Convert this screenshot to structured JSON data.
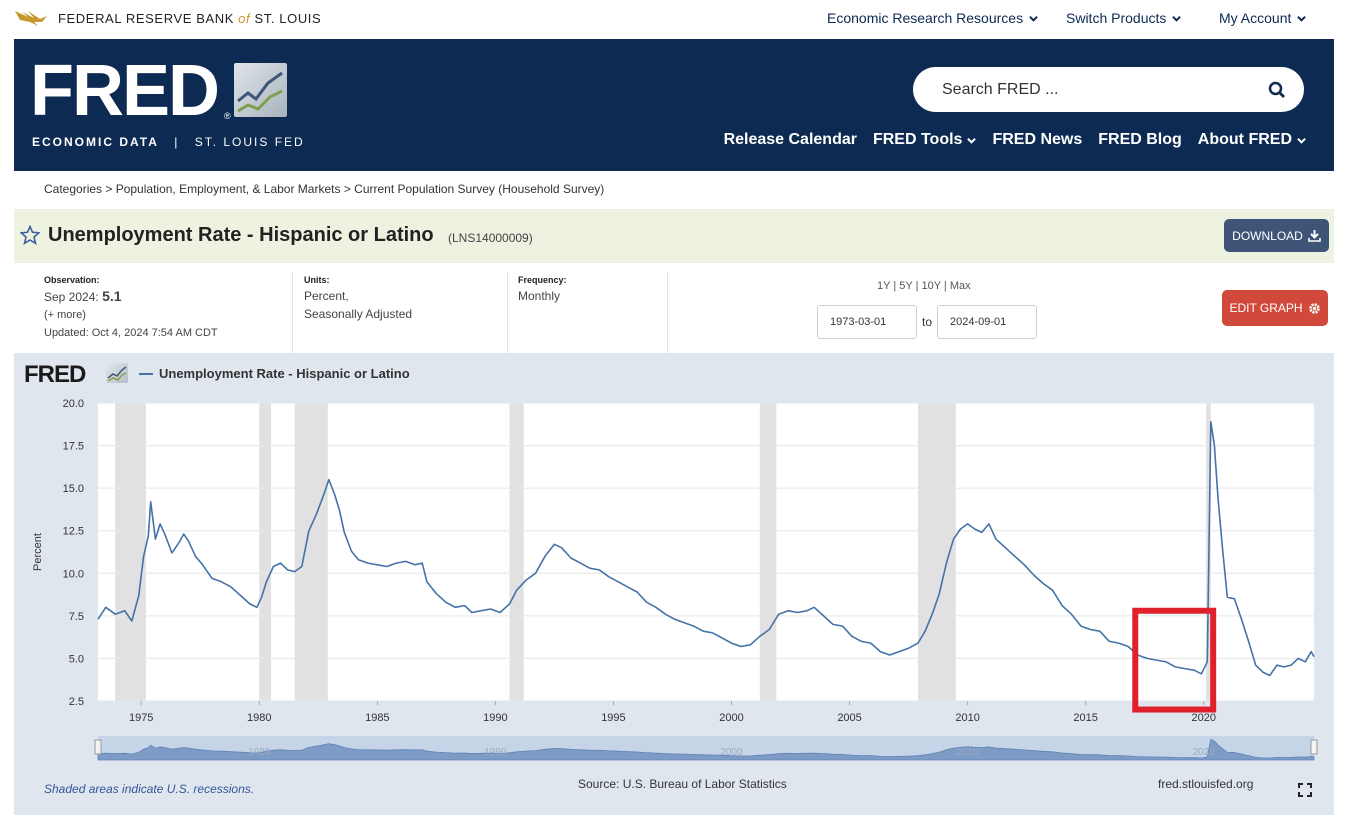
{
  "topbar": {
    "brand_main": "FEDERAL RESERVE BANK",
    "brand_of": "of",
    "brand_city": "ST. LOUIS",
    "nav": [
      {
        "label": "Economic Research Resources"
      },
      {
        "label": "Switch Products"
      },
      {
        "label": "My Account"
      }
    ]
  },
  "header": {
    "logo_text": "FRED",
    "logo_reg": "®",
    "logo_sub_left": "ECONOMIC DATA",
    "logo_sub_sep": "|",
    "logo_sub_right": "ST. LOUIS FED",
    "search_placeholder": "Search FRED ...",
    "nav": [
      {
        "label": "Release Calendar",
        "dropdown": false
      },
      {
        "label": "FRED Tools",
        "dropdown": true
      },
      {
        "label": "FRED News",
        "dropdown": false
      },
      {
        "label": "FRED Blog",
        "dropdown": false
      },
      {
        "label": "About FRED",
        "dropdown": true
      }
    ]
  },
  "breadcrumb": "Categories > Population, Employment, & Labor Markets > Current Population Survey (Household Survey)",
  "series": {
    "title": "Unemployment Rate - Hispanic or Latino",
    "id": "(LNS14000009)",
    "download_label": "DOWNLOAD"
  },
  "meta": {
    "observation_label": "Observation:",
    "observation_date": "Sep 2024:",
    "observation_value": "5.1",
    "more": "(+ more)",
    "updated": "Updated: Oct 4, 2024 7:54 AM CDT",
    "units_label": "Units:",
    "units_line1": "Percent,",
    "units_line2": "Seasonally Adjusted",
    "frequency_label": "Frequency:",
    "frequency_value": "Monthly",
    "range_links": [
      "1Y",
      "5Y",
      "10Y",
      "Max"
    ],
    "start_date": "1973-03-01",
    "to_label": "to",
    "end_date": "2024-09-01",
    "edit_label": "EDIT GRAPH"
  },
  "graph": {
    "logo_text": "FRED",
    "recession_note": "Shaded areas indicate U.S. recessions.",
    "source": "Source: U.S. Bureau of Labor Statistics",
    "site": "fred.stlouisfed.org",
    "highlight_color": "#e0202a"
  },
  "chart_data": {
    "type": "line",
    "series": [
      {
        "name": "Unemployment Rate - Hispanic or Latino",
        "color": "#4572a7",
        "points": [
          [
            1973.17,
            7.3
          ],
          [
            1973.5,
            8.0
          ],
          [
            1973.9,
            7.6
          ],
          [
            1974.3,
            7.8
          ],
          [
            1974.6,
            7.2
          ],
          [
            1974.9,
            8.7
          ],
          [
            1975.1,
            11.0
          ],
          [
            1975.3,
            12.2
          ],
          [
            1975.4,
            14.2
          ],
          [
            1975.6,
            12.0
          ],
          [
            1975.8,
            12.9
          ],
          [
            1976.0,
            12.3
          ],
          [
            1976.3,
            11.2
          ],
          [
            1976.6,
            11.8
          ],
          [
            1976.8,
            12.3
          ],
          [
            1977.0,
            11.9
          ],
          [
            1977.3,
            11.0
          ],
          [
            1977.6,
            10.5
          ],
          [
            1978.0,
            9.7
          ],
          [
            1978.4,
            9.5
          ],
          [
            1978.8,
            9.2
          ],
          [
            1979.2,
            8.7
          ],
          [
            1979.6,
            8.2
          ],
          [
            1979.9,
            8.0
          ],
          [
            1980.1,
            8.6
          ],
          [
            1980.3,
            9.5
          ],
          [
            1980.6,
            10.4
          ],
          [
            1980.9,
            10.6
          ],
          [
            1981.2,
            10.2
          ],
          [
            1981.5,
            10.1
          ],
          [
            1981.8,
            10.4
          ],
          [
            1982.1,
            12.5
          ],
          [
            1982.4,
            13.4
          ],
          [
            1982.7,
            14.5
          ],
          [
            1982.95,
            15.5
          ],
          [
            1983.2,
            14.6
          ],
          [
            1983.4,
            13.7
          ],
          [
            1983.6,
            12.4
          ],
          [
            1983.9,
            11.3
          ],
          [
            1984.2,
            10.8
          ],
          [
            1984.6,
            10.6
          ],
          [
            1985.0,
            10.5
          ],
          [
            1985.4,
            10.4
          ],
          [
            1985.8,
            10.6
          ],
          [
            1986.2,
            10.7
          ],
          [
            1986.6,
            10.5
          ],
          [
            1986.9,
            10.6
          ],
          [
            1987.1,
            9.5
          ],
          [
            1987.5,
            8.8
          ],
          [
            1987.9,
            8.3
          ],
          [
            1988.3,
            8.0
          ],
          [
            1988.7,
            8.1
          ],
          [
            1989.0,
            7.7
          ],
          [
            1989.4,
            7.8
          ],
          [
            1989.8,
            7.9
          ],
          [
            1990.2,
            7.7
          ],
          [
            1990.6,
            8.2
          ],
          [
            1990.9,
            9.0
          ],
          [
            1991.3,
            9.6
          ],
          [
            1991.7,
            10.0
          ],
          [
            1992.1,
            11.0
          ],
          [
            1992.5,
            11.7
          ],
          [
            1992.8,
            11.5
          ],
          [
            1993.2,
            10.9
          ],
          [
            1993.6,
            10.6
          ],
          [
            1994.0,
            10.3
          ],
          [
            1994.4,
            10.2
          ],
          [
            1994.8,
            9.8
          ],
          [
            1995.2,
            9.5
          ],
          [
            1995.6,
            9.2
          ],
          [
            1996.0,
            8.9
          ],
          [
            1996.4,
            8.3
          ],
          [
            1996.8,
            8.0
          ],
          [
            1997.2,
            7.6
          ],
          [
            1997.6,
            7.3
          ],
          [
            1998.0,
            7.1
          ],
          [
            1998.4,
            6.9
          ],
          [
            1998.8,
            6.6
          ],
          [
            1999.2,
            6.5
          ],
          [
            1999.6,
            6.2
          ],
          [
            2000.0,
            5.9
          ],
          [
            2000.4,
            5.7
          ],
          [
            2000.8,
            5.8
          ],
          [
            2001.2,
            6.3
          ],
          [
            2001.6,
            6.7
          ],
          [
            2002.0,
            7.6
          ],
          [
            2002.4,
            7.8
          ],
          [
            2002.8,
            7.7
          ],
          [
            2003.2,
            7.8
          ],
          [
            2003.5,
            8.0
          ],
          [
            2003.9,
            7.5
          ],
          [
            2004.3,
            7.0
          ],
          [
            2004.7,
            6.9
          ],
          [
            2005.1,
            6.3
          ],
          [
            2005.5,
            6.0
          ],
          [
            2005.9,
            5.9
          ],
          [
            2006.3,
            5.4
          ],
          [
            2006.7,
            5.2
          ],
          [
            2007.1,
            5.4
          ],
          [
            2007.5,
            5.6
          ],
          [
            2007.9,
            5.9
          ],
          [
            2008.2,
            6.6
          ],
          [
            2008.5,
            7.6
          ],
          [
            2008.8,
            8.8
          ],
          [
            2009.1,
            10.6
          ],
          [
            2009.4,
            12.0
          ],
          [
            2009.7,
            12.6
          ],
          [
            2010.0,
            12.9
          ],
          [
            2010.3,
            12.6
          ],
          [
            2010.6,
            12.4
          ],
          [
            2010.9,
            12.9
          ],
          [
            2011.2,
            12.0
          ],
          [
            2011.6,
            11.5
          ],
          [
            2012.0,
            11.0
          ],
          [
            2012.4,
            10.5
          ],
          [
            2012.8,
            9.9
          ],
          [
            2013.2,
            9.4
          ],
          [
            2013.6,
            9.0
          ],
          [
            2014.0,
            8.1
          ],
          [
            2014.4,
            7.6
          ],
          [
            2014.8,
            6.9
          ],
          [
            2015.2,
            6.7
          ],
          [
            2015.6,
            6.6
          ],
          [
            2016.0,
            6.0
          ],
          [
            2016.4,
            5.9
          ],
          [
            2016.8,
            5.7
          ],
          [
            2017.2,
            5.2
          ],
          [
            2017.6,
            5.0
          ],
          [
            2018.0,
            4.9
          ],
          [
            2018.4,
            4.8
          ],
          [
            2018.8,
            4.5
          ],
          [
            2019.2,
            4.4
          ],
          [
            2019.6,
            4.3
          ],
          [
            2019.9,
            4.1
          ],
          [
            2020.15,
            4.8
          ],
          [
            2020.3,
            18.9
          ],
          [
            2020.45,
            17.5
          ],
          [
            2020.6,
            14.5
          ],
          [
            2020.8,
            11.4
          ],
          [
            2021.0,
            8.6
          ],
          [
            2021.3,
            8.5
          ],
          [
            2021.6,
            7.3
          ],
          [
            2021.9,
            6.0
          ],
          [
            2022.2,
            4.6
          ],
          [
            2022.5,
            4.2
          ],
          [
            2022.8,
            4.0
          ],
          [
            2023.1,
            4.6
          ],
          [
            2023.4,
            4.5
          ],
          [
            2023.7,
            4.6
          ],
          [
            2024.0,
            5.0
          ],
          [
            2024.3,
            4.8
          ],
          [
            2024.55,
            5.4
          ],
          [
            2024.67,
            5.1
          ]
        ]
      }
    ],
    "recessions": [
      [
        1973.9,
        1975.2
      ],
      [
        1980.0,
        1980.5
      ],
      [
        1981.5,
        1982.9
      ],
      [
        1990.6,
        1991.2
      ],
      [
        2001.2,
        2001.9
      ],
      [
        2007.9,
        2009.5
      ],
      [
        2020.1,
        2020.3
      ]
    ],
    "xlim": [
      1973.17,
      2024.67
    ],
    "ylim": [
      2.5,
      20.0
    ],
    "xticks": [
      "1975",
      "1980",
      "1985",
      "1990",
      "1995",
      "2000",
      "2005",
      "2010",
      "2015",
      "2020"
    ],
    "yticks": [
      "2.5",
      "5.0",
      "7.5",
      "10.0",
      "12.5",
      "15.0",
      "17.5",
      "20.0"
    ],
    "ylabel": "Percent",
    "grid": true,
    "navigator_labels": [
      "1980",
      "1990",
      "2000",
      "2010",
      "2020"
    ],
    "highlight_range": {
      "x": [
        2017.1,
        2020.4
      ],
      "y": [
        2.0,
        7.8
      ]
    }
  }
}
